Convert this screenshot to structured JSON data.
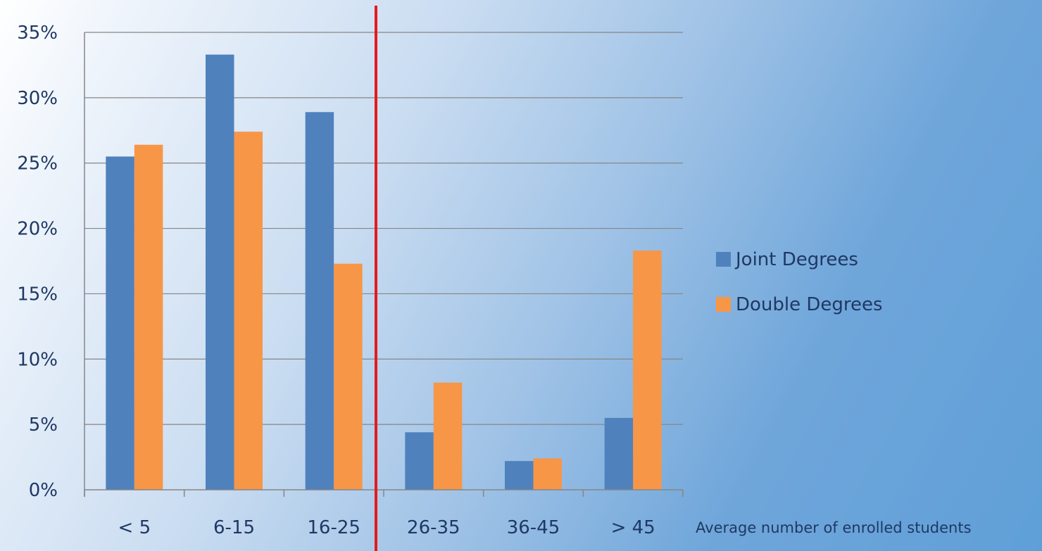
{
  "chart_data": {
    "type": "bar",
    "categories": [
      "< 5",
      "6-15",
      "16-25",
      "26-35",
      "36-45",
      "> 45"
    ],
    "series": [
      {
        "name": "Joint Degrees",
        "color": "#4f81bd",
        "values": [
          25.5,
          33.3,
          28.9,
          4.4,
          2.2,
          5.5
        ]
      },
      {
        "name": "Double Degrees",
        "color": "#f79646",
        "values": [
          26.4,
          27.4,
          17.3,
          8.2,
          2.4,
          18.3
        ]
      }
    ],
    "y_ticks": [
      "0%",
      "5%",
      "10%",
      "15%",
      "20%",
      "25%",
      "30%",
      "35%"
    ],
    "ylim": [
      0,
      35
    ],
    "xlabel": "Average number of enrolled students",
    "ylabel": "",
    "grid": true,
    "legend_position": "right",
    "marker_line": {
      "color": "#e41a1c",
      "between": [
        "16-25",
        "26-35"
      ]
    }
  }
}
